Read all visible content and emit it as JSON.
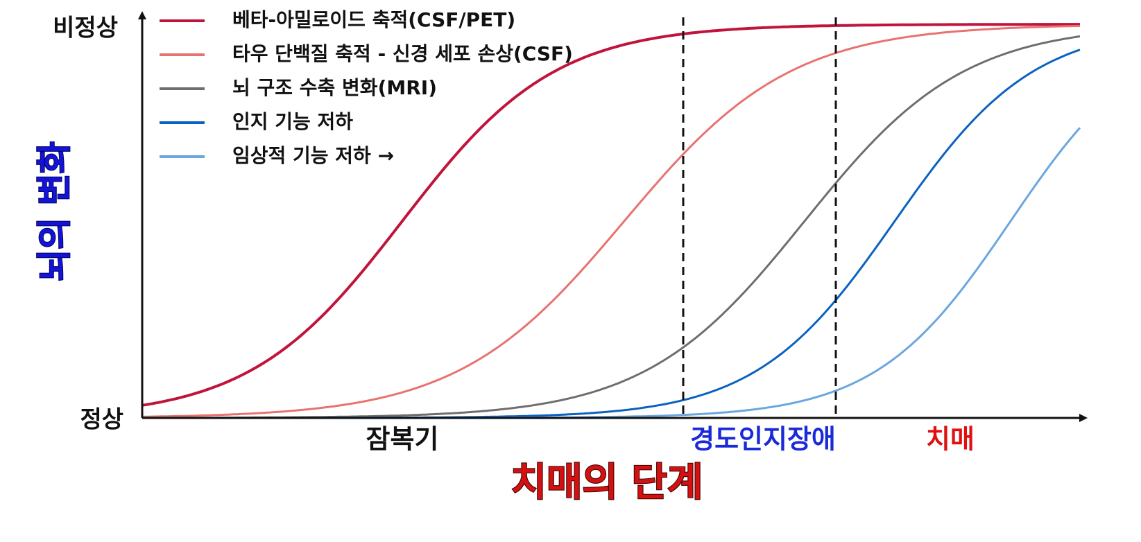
{
  "y_axis": {
    "title": "뇌의 변화",
    "top_label": "비정상",
    "bottom_label": "정상"
  },
  "x_axis": {
    "title": "치매의 단계",
    "title_color": "#d41010",
    "stages": [
      {
        "label": "잠복기",
        "color": "#111111"
      },
      {
        "label": "경도인지장애",
        "color": "#1a2ad8"
      },
      {
        "label": "치매",
        "color": "#e01010"
      }
    ]
  },
  "legend": [
    {
      "label": "베타-아밀로이드 축적(CSF/PET)",
      "color": "#c0143c"
    },
    {
      "label": "타우 단백질 축적 - 신경 세포 손상(CSF)",
      "color": "#e8726e"
    },
    {
      "label": "뇌 구조 수축 변화(MRI)",
      "color": "#6e6e6e"
    },
    {
      "label": "인지 기능 저하",
      "color": "#0a62c0"
    },
    {
      "label": "임상적 기능 저하 →",
      "color": "#6aa6e0"
    }
  ]
}
